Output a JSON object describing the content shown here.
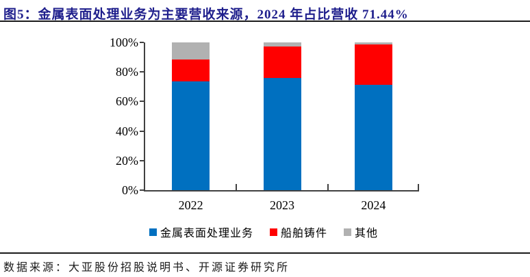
{
  "title": "图5：金属表面处理业务为主要营收来源，2024 年占比营收 71.44%",
  "source": "数据来源：大亚股份招股说明书、开源证券研究所",
  "colors": {
    "title": "#1e1e8c",
    "rule": "#1a1a1a",
    "axis": "#404040",
    "series_blue": "#0070C0",
    "series_red": "#FF0000",
    "series_gray": "#B1B1B1"
  },
  "chart_data": {
    "type": "bar",
    "stacked": true,
    "unit": "%",
    "categories": [
      "2022",
      "2023",
      "2024"
    ],
    "series": [
      {
        "name": "金属表面处理业务",
        "color": "#0070C0",
        "values": [
          73.8,
          75.9,
          71.44
        ]
      },
      {
        "name": "船舶铸件",
        "color": "#FF0000",
        "values": [
          14.6,
          21.5,
          27.3
        ]
      },
      {
        "name": "其他",
        "color": "#B1B1B1",
        "values": [
          11.6,
          2.6,
          1.26
        ]
      }
    ],
    "ylim": [
      0,
      100
    ],
    "yticks": [
      "0%",
      "20%",
      "40%",
      "60%",
      "80%",
      "100%"
    ],
    "grid": false,
    "legend_position": "bottom"
  }
}
